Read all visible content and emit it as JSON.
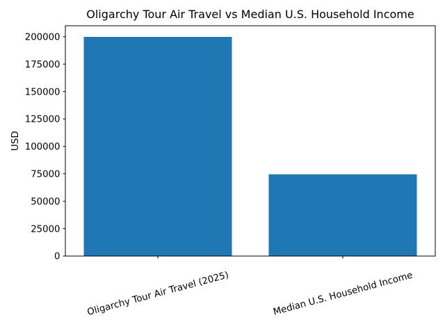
{
  "chart_data": {
    "type": "bar",
    "title": "Oligarchy Tour Air Travel vs Median U.S. Household Income",
    "ylabel": "USD",
    "xlabel": "",
    "categories": [
      "Oligarchy Tour Air Travel (2025)",
      "Median U.S. Household Income"
    ],
    "values": [
      200000,
      74580
    ],
    "ylim": [
      0,
      210000
    ],
    "yticks": [
      0,
      25000,
      50000,
      75000,
      100000,
      125000,
      150000,
      175000,
      200000
    ],
    "xtick_rotation_deg": 15,
    "bar_width_fraction": 0.8,
    "grid": false,
    "legend": null,
    "colors": {
      "bar": "#1f77b4",
      "text": "#000000",
      "spine": "#000000",
      "background": "#ffffff"
    }
  }
}
